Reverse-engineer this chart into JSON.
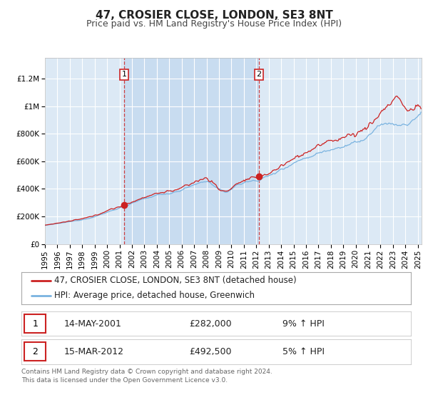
{
  "title": "47, CROSIER CLOSE, LONDON, SE3 8NT",
  "subtitle": "Price paid vs. HM Land Registry's House Price Index (HPI)",
  "ylim": [
    0,
    1300000
  ],
  "xlim_start": 1995.0,
  "xlim_end": 2025.3,
  "background_color": "#ffffff",
  "plot_bg_color": "#dce9f5",
  "shaded_bg_color": "#c8dcf0",
  "grid_color": "#ffffff",
  "hpi_color": "#7ab3e0",
  "price_color": "#cc2222",
  "marker1_date": 2001.37,
  "marker1_price": 282000,
  "marker2_date": 2012.21,
  "marker2_price": 492500,
  "legend_label1": "47, CROSIER CLOSE, LONDON, SE3 8NT (detached house)",
  "legend_label2": "HPI: Average price, detached house, Greenwich",
  "table_row1": [
    "1",
    "14-MAY-2001",
    "£282,000",
    "9% ↑ HPI"
  ],
  "table_row2": [
    "2",
    "15-MAR-2012",
    "£492,500",
    "5% ↑ HPI"
  ],
  "footer": "Contains HM Land Registry data © Crown copyright and database right 2024.\nThis data is licensed under the Open Government Licence v3.0.",
  "ytick_labels": [
    "£0",
    "£200K",
    "£400K",
    "£600K",
    "£800K",
    "£1M",
    "£1.2M"
  ],
  "ytick_values": [
    0,
    200000,
    400000,
    600000,
    800000,
    1000000,
    1200000
  ],
  "xtick_labels": [
    "1995",
    "1996",
    "1997",
    "1998",
    "1999",
    "2000",
    "2001",
    "2002",
    "2003",
    "2004",
    "2005",
    "2006",
    "2007",
    "2008",
    "2009",
    "2010",
    "2011",
    "2012",
    "2013",
    "2014",
    "2015",
    "2016",
    "2017",
    "2018",
    "2019",
    "2020",
    "2021",
    "2022",
    "2023",
    "2024",
    "2025"
  ],
  "title_fontsize": 11,
  "subtitle_fontsize": 9,
  "tick_fontsize": 7.5,
  "legend_fontsize": 8.5
}
